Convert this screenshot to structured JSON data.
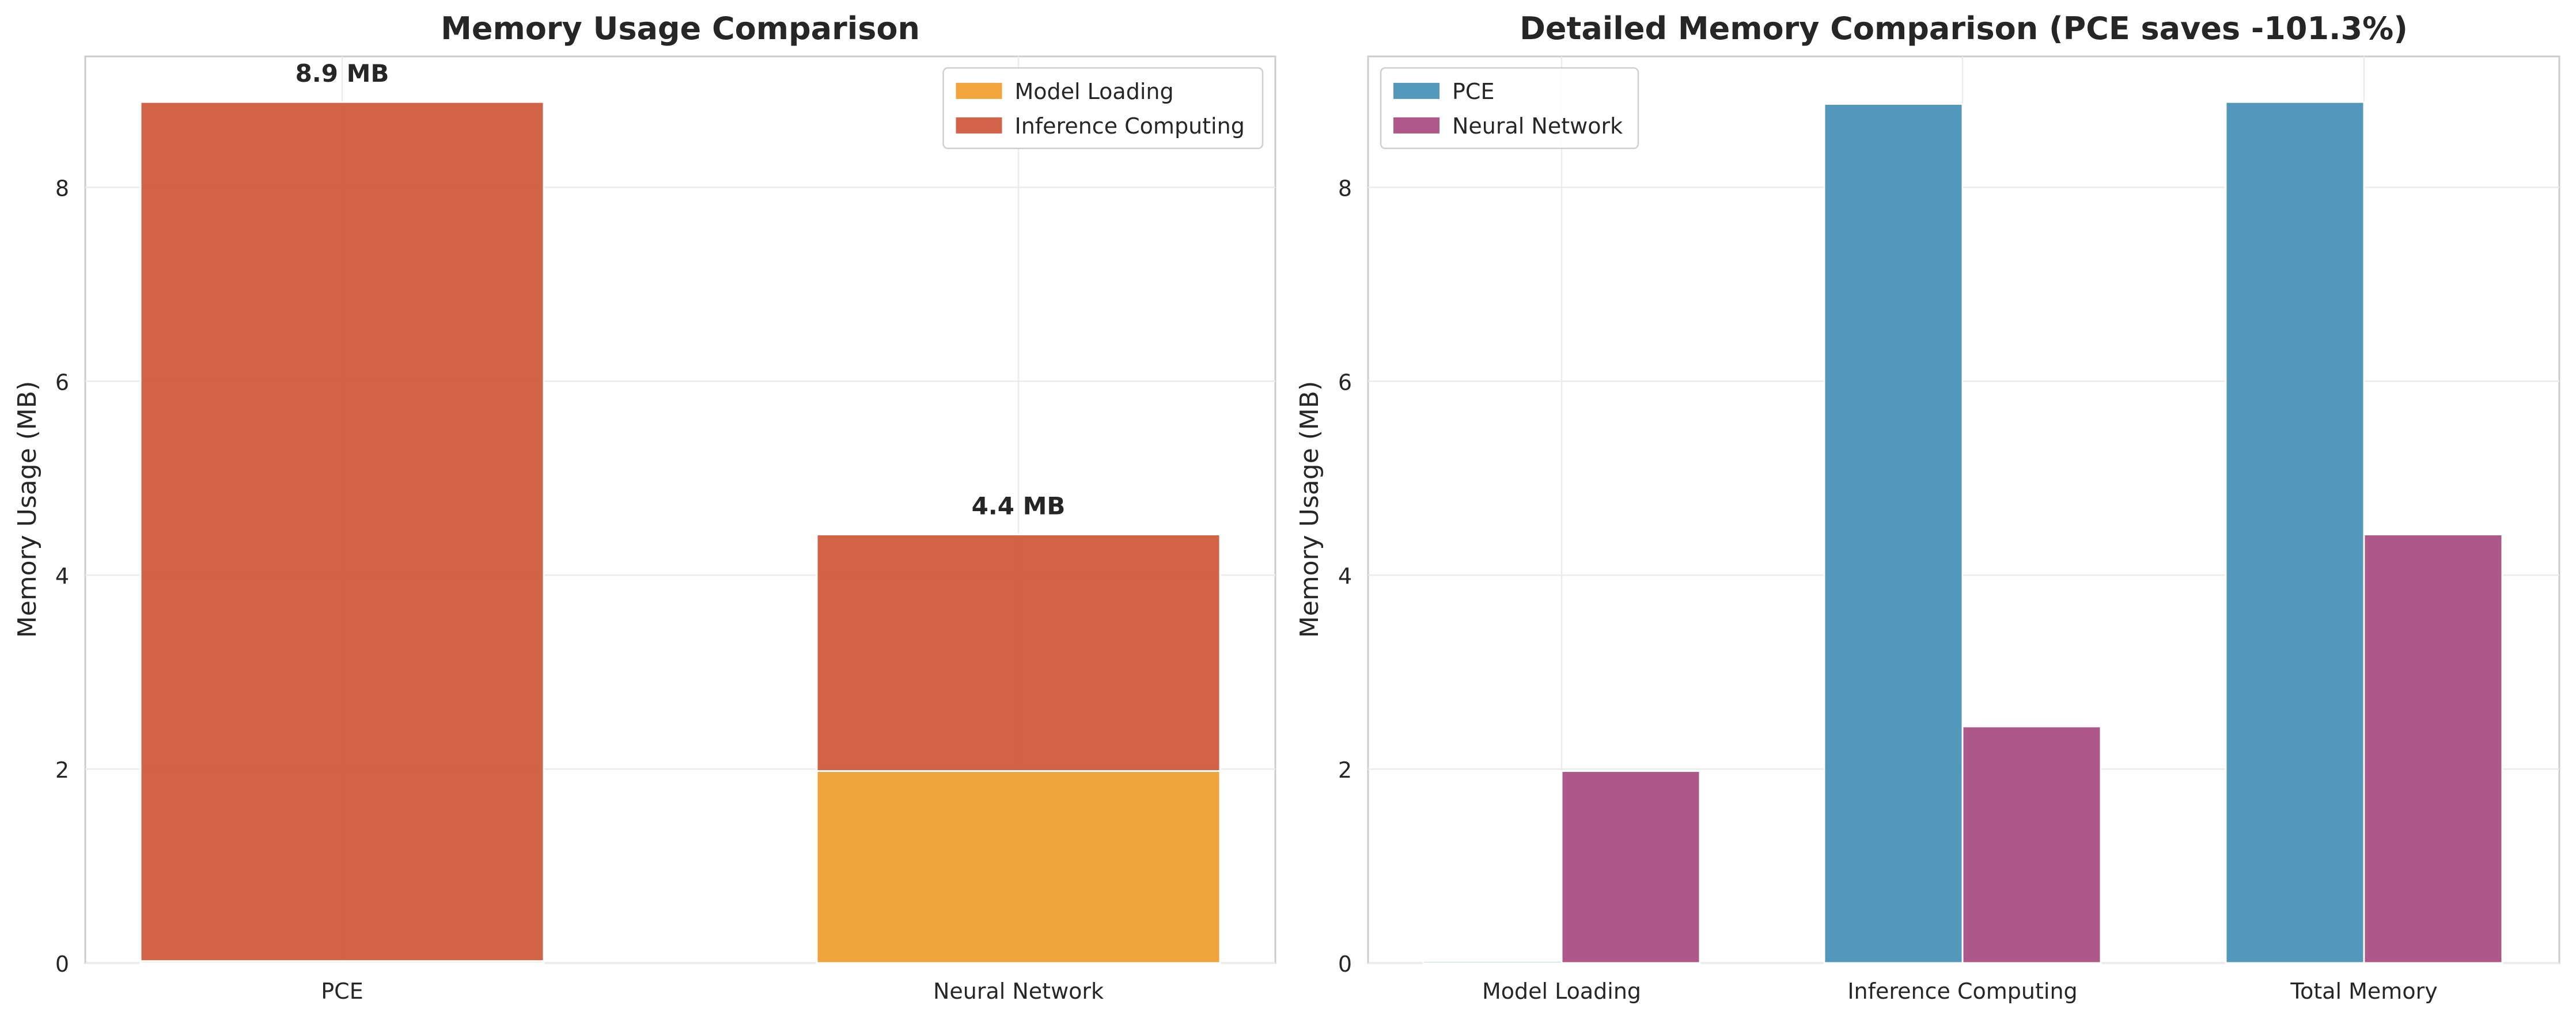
{
  "chart_data": [
    {
      "type": "bar",
      "stacked": true,
      "title": "Memory Usage Comparison",
      "xlabel": "",
      "ylabel": "Memory Usage (MB)",
      "categories": [
        "PCE",
        "Neural Network"
      ],
      "series": [
        {
          "name": "Model Loading",
          "color": "#F0A032",
          "values": [
            0.02,
            1.98
          ]
        },
        {
          "name": "Inference Computing",
          "color": "#CF5B3E",
          "values": [
            8.86,
            2.44
          ]
        }
      ],
      "bar_labels": [
        "8.9 MB",
        "4.4 MB"
      ],
      "ylim": [
        0,
        9.35
      ],
      "yticks": [
        0,
        2,
        4,
        6,
        8
      ],
      "grid": true,
      "legend": "top-right"
    },
    {
      "type": "bar",
      "stacked": false,
      "title": "Detailed Memory Comparison (PCE saves -101.3%)",
      "xlabel": "",
      "ylabel": "Memory Usage (MB)",
      "categories": [
        "Model Loading",
        "Inference Computing",
        "Total Memory"
      ],
      "series": [
        {
          "name": "PCE",
          "color": "#4A93B8",
          "values": [
            0.02,
            8.86,
            8.88
          ]
        },
        {
          "name": "Neural Network",
          "color": "#AA5083",
          "values": [
            1.98,
            2.44,
            4.42
          ]
        }
      ],
      "ylim": [
        0,
        9.35
      ],
      "yticks": [
        0,
        2,
        4,
        6,
        8
      ],
      "grid": true,
      "legend": "top-left"
    }
  ]
}
